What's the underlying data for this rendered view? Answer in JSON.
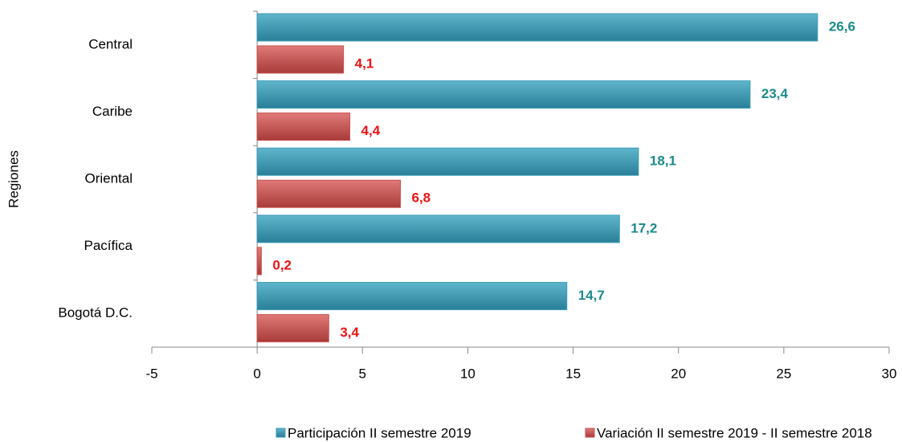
{
  "chart_data": {
    "type": "bar",
    "orientation": "horizontal",
    "y_label": "Regiones",
    "categories": [
      "Central",
      "Caribe",
      "Oriental",
      "Pacífica",
      "Bogotá D.C."
    ],
    "series": [
      {
        "name": "Participación II semestre 2019",
        "color": "#3b9bb7",
        "label_color": "#1b8a8c",
        "values": [
          26.6,
          23.4,
          18.1,
          17.2,
          14.7
        ],
        "value_labels": [
          "26,6",
          "23,4",
          "18,1",
          "17,2",
          "14,7"
        ]
      },
      {
        "name": "Variación II semestre 2019 - II semestre 2018",
        "color": "#c9504f",
        "label_color": "#ee1111",
        "values": [
          4.1,
          4.4,
          6.8,
          0.2,
          3.4
        ],
        "value_labels": [
          "4,1",
          "4,4",
          "6,8",
          "0,2",
          "3,4"
        ]
      }
    ],
    "xlim": [
      -5,
      30
    ],
    "xticks": [
      -5,
      0,
      5,
      10,
      15,
      20,
      25,
      30
    ],
    "grid": false
  }
}
